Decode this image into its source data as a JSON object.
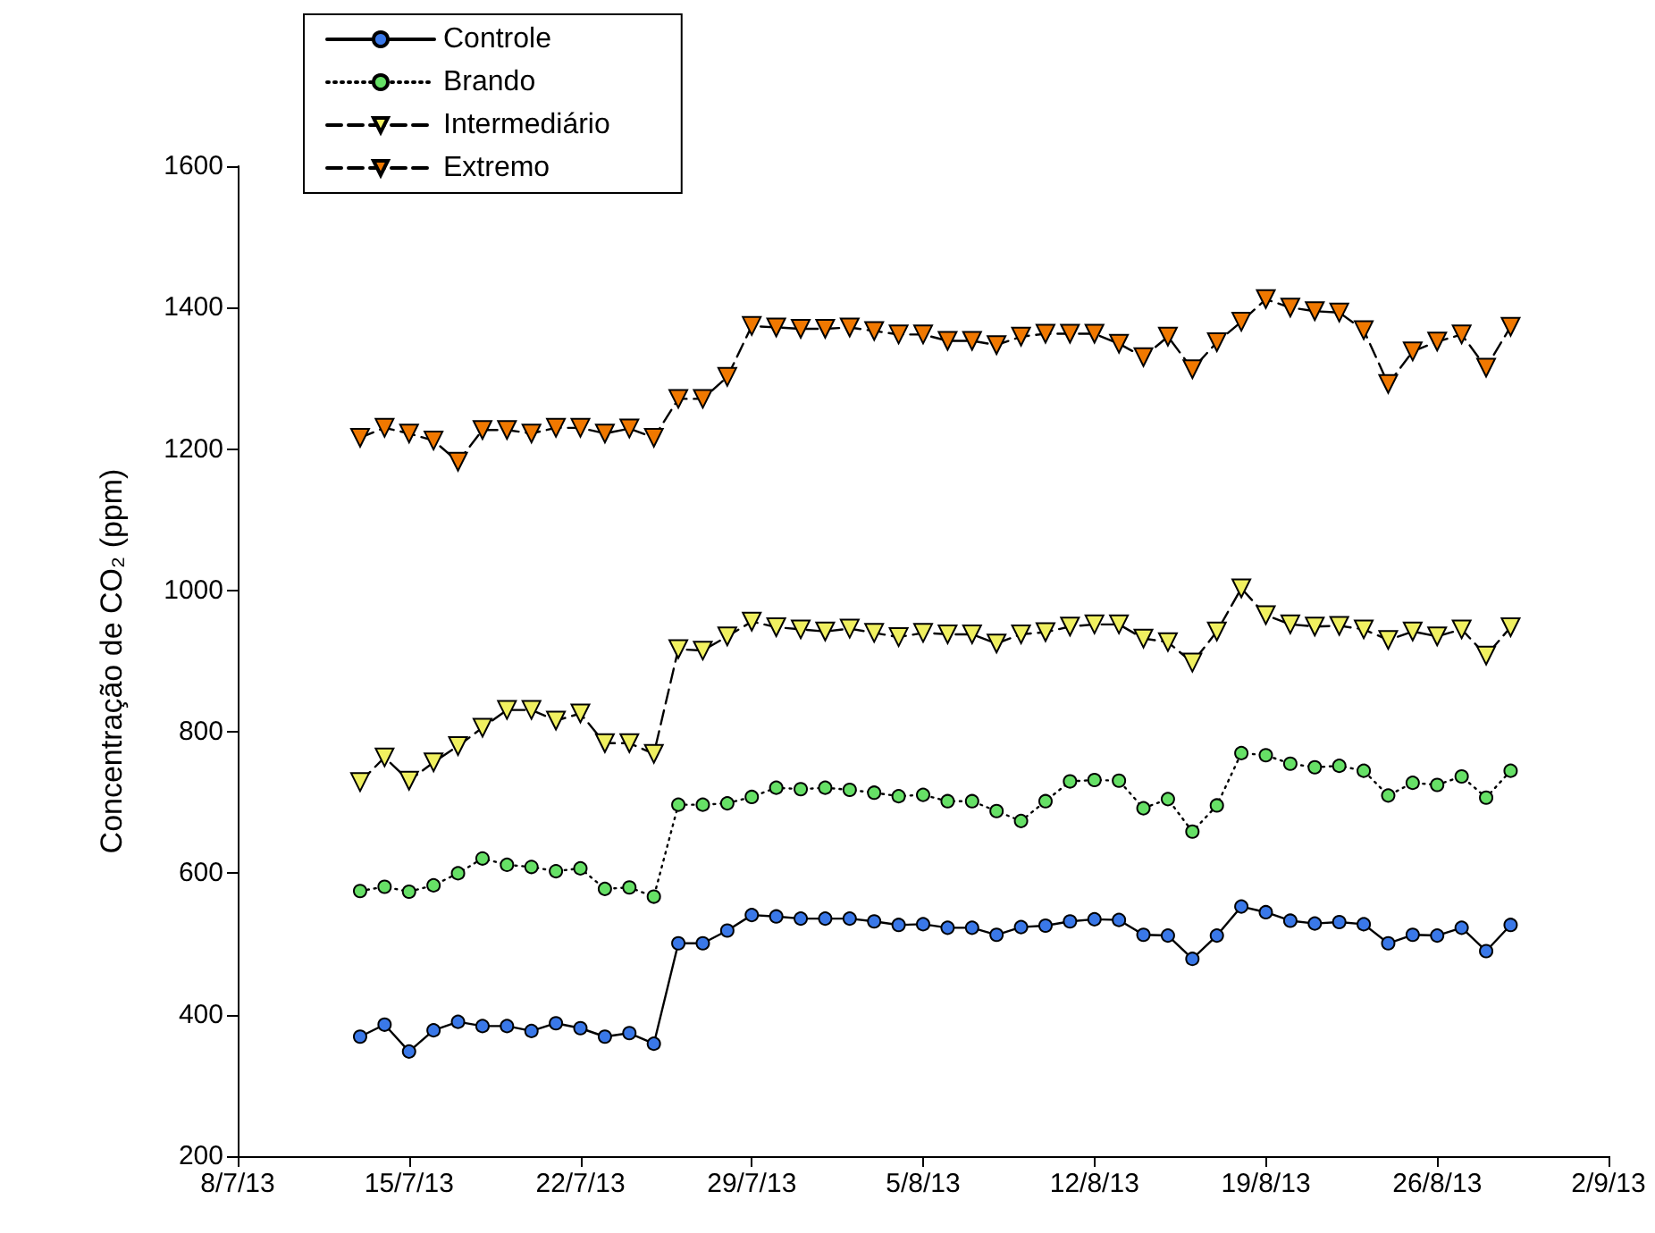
{
  "chart_data": {
    "type": "line",
    "ylabel": "Concentração de CO₂ (ppm)",
    "legend": "top left",
    "grid": false,
    "x": [
      "--07-13",
      "--07-14",
      "--07-15",
      "--07-16",
      "--07-17",
      "--07-18",
      "--07-19",
      "--07-20",
      "--07-21",
      "--07-22",
      "--07-23",
      "--07-24",
      "--07-25",
      "--07-26",
      "--07-27",
      "--07-28",
      "--07-29",
      "--07-30",
      "--07-31",
      "--08-01",
      "--08-02",
      "--08-03",
      "--08-04",
      "--08-05",
      "--08-06",
      "--08-07",
      "--08-08",
      "--08-09",
      "--08-10",
      "--08-11",
      "--08-12",
      "--08-13",
      "--08-14",
      "--08-15",
      "--08-16",
      "--08-17",
      "--08-18",
      "--08-19",
      "--08-20",
      "--08-21",
      "--08-22",
      "--08-23",
      "--08-24",
      "--08-25",
      "--08-26",
      "--08-27",
      "--08-28",
      "--08-29"
    ],
    "xlim": [
      "--07-08",
      "--09-02"
    ],
    "xticks": [
      {
        "value": "--07-08",
        "label": "8/7/13"
      },
      {
        "value": "--07-15",
        "label": "15/7/13"
      },
      {
        "value": "--07-22",
        "label": "22/7/13"
      },
      {
        "value": "--07-29",
        "label": "29/7/13"
      },
      {
        "value": "--08-05",
        "label": "5/8/13"
      },
      {
        "value": "--08-12",
        "label": "12/8/13"
      },
      {
        "value": "--08-19",
        "label": "19/8/13"
      },
      {
        "value": "--08-26",
        "label": "26/8/13"
      },
      {
        "value": "--09-02",
        "label": "2/9/13"
      }
    ],
    "ylim": [
      200,
      1600
    ],
    "yticks": [
      200,
      400,
      600,
      800,
      1000,
      1200,
      1400,
      1600
    ],
    "series": [
      {
        "name": "Controle",
        "color": "#3a78e8",
        "marker": "circle",
        "line_style": "solid",
        "values": [
          369,
          386,
          348,
          378,
          390,
          384,
          384,
          377,
          388,
          381,
          369,
          374,
          359,
          501,
          501,
          519,
          541,
          539,
          536,
          536,
          536,
          532,
          527,
          528,
          523,
          523,
          513,
          524,
          526,
          532,
          535,
          534,
          513,
          512,
          479,
          512,
          553,
          545,
          533,
          529,
          531,
          528,
          501,
          513,
          512,
          523,
          490,
          527
        ]
      },
      {
        "name": "Brando",
        "color": "#66e066",
        "marker": "circle",
        "line_style": "dotted",
        "values": [
          575,
          581,
          574,
          583,
          600,
          621,
          612,
          609,
          603,
          607,
          578,
          580,
          567,
          697,
          697,
          699,
          708,
          721,
          719,
          721,
          718,
          714,
          709,
          711,
          702,
          702,
          688,
          674,
          702,
          730,
          732,
          731,
          692,
          705,
          659,
          696,
          770,
          767,
          755,
          750,
          752,
          745,
          710,
          728,
          725,
          737,
          707,
          745
        ]
      },
      {
        "name": "Intermediário",
        "color": "#f0f060",
        "marker": "triangle",
        "line_style": "dashed",
        "values": [
          729,
          764,
          731,
          757,
          780,
          806,
          831,
          831,
          816,
          826,
          784,
          784,
          769,
          917,
          915,
          935,
          956,
          948,
          945,
          942,
          946,
          940,
          934,
          940,
          938,
          938,
          925,
          938,
          941,
          949,
          952,
          952,
          932,
          927,
          898,
          942,
          1003,
          965,
          952,
          949,
          950,
          945,
          930,
          942,
          935,
          945,
          908,
          948
        ]
      },
      {
        "name": "Extremo",
        "color": "#f07800",
        "marker": "triangle",
        "line_style": "dashed",
        "values": [
          1216,
          1230,
          1222,
          1212,
          1182,
          1227,
          1227,
          1222,
          1230,
          1230,
          1222,
          1229,
          1216,
          1271,
          1271,
          1302,
          1374,
          1372,
          1370,
          1370,
          1372,
          1367,
          1362,
          1362,
          1353,
          1353,
          1347,
          1359,
          1363,
          1363,
          1363,
          1349,
          1330,
          1359,
          1313,
          1351,
          1380,
          1412,
          1400,
          1395,
          1393,
          1368,
          1292,
          1338,
          1352,
          1362,
          1315,
          1373
        ]
      }
    ]
  }
}
